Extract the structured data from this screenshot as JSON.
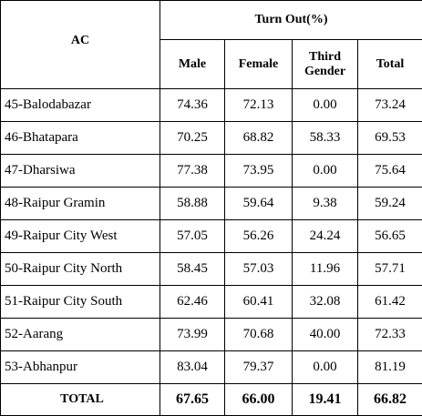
{
  "table": {
    "header": {
      "first": "AC",
      "group": "Turn Out(%)",
      "columns": [
        "Male",
        "Female",
        "Third Gender",
        "Total"
      ]
    },
    "rows": [
      [
        "45-Balodabazar",
        "74.36",
        "72.13",
        "0.00",
        "73.24"
      ],
      [
        "46-Bhatapara",
        "70.25",
        "68.82",
        "58.33",
        "69.53"
      ],
      [
        "47-Dharsiwa",
        "77.38",
        "73.95",
        "0.00",
        "75.64"
      ],
      [
        "48-Raipur Gramin",
        "58.88",
        "59.64",
        "9.38",
        "59.24"
      ],
      [
        "49-Raipur City West",
        "57.05",
        "56.26",
        "24.24",
        "56.65"
      ],
      [
        "50-Raipur City North",
        "58.45",
        "57.03",
        "11.96",
        "57.71"
      ],
      [
        "51-Raipur City South",
        "62.46",
        "60.41",
        "32.08",
        "61.42"
      ],
      [
        "52-Aarang",
        "73.99",
        "70.68",
        "40.00",
        "72.33"
      ],
      [
        "53-Abhanpur",
        "83.04",
        "79.37",
        "0.00",
        "81.19"
      ]
    ],
    "total": [
      "TOTAL",
      "67.65",
      "66.00",
      "19.41",
      "66.82"
    ]
  }
}
